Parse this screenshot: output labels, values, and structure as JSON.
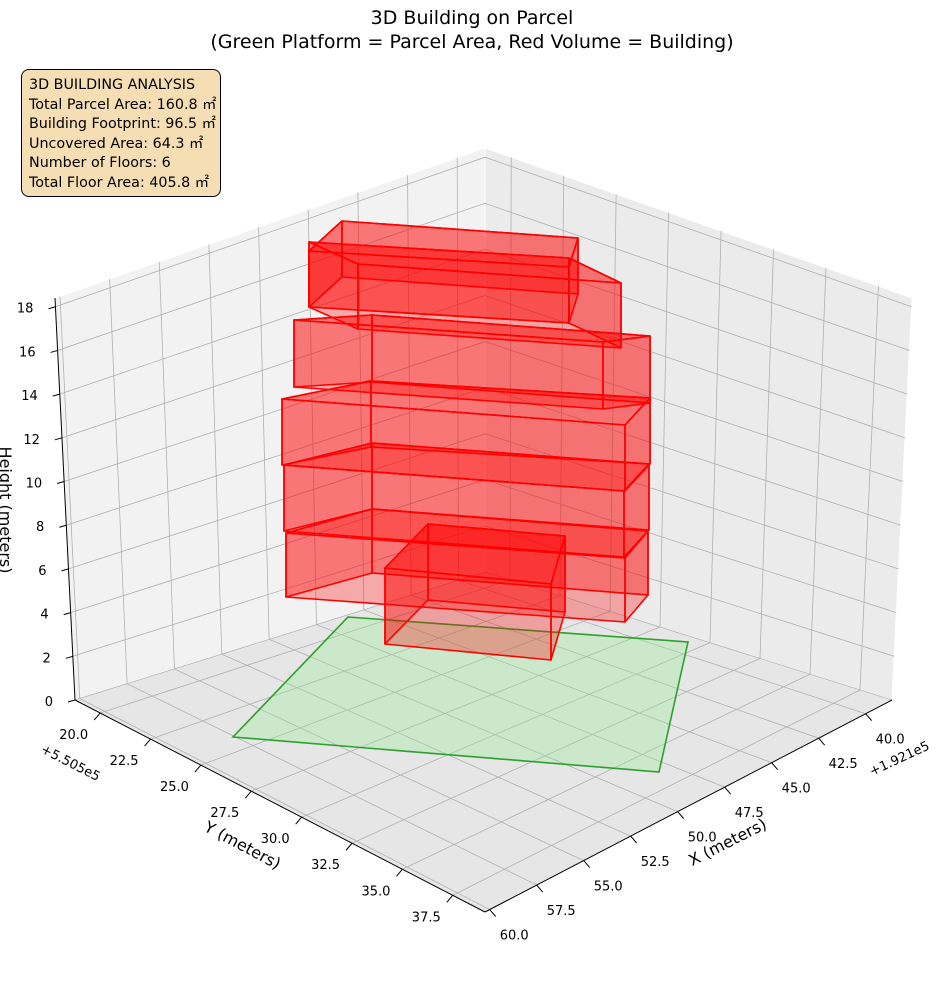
{
  "chart_data": {
    "type": "3d-box",
    "title_line1": "3D Building on Parcel",
    "title_line2": "(Green Platform = Parcel Area, Red Volume = Building)",
    "xlabel": "X (meters)",
    "ylabel": "Y (meters)",
    "zlabel": "Height (meters)",
    "x_offset": "+1.921e5",
    "y_offset": "+5.505e5",
    "x_ticks": [
      "40.0",
      "42.5",
      "45.0",
      "47.5",
      "50.0",
      "52.5",
      "55.0",
      "57.5",
      "60.0"
    ],
    "y_ticks": [
      "20.0",
      "22.5",
      "25.0",
      "27.5",
      "30.0",
      "32.5",
      "35.0",
      "37.5"
    ],
    "z_ticks": [
      "0",
      "2",
      "4",
      "6",
      "8",
      "10",
      "12",
      "14",
      "16",
      "18"
    ],
    "grid": true,
    "parcel_color": "#90ee90",
    "parcel_edge_color": "#2ca02c",
    "building_color": "#ff0000",
    "info_box_color": "#f5deb3",
    "floors": [
      {
        "floor": 1,
        "z_bottom": 0,
        "z_top": 3
      },
      {
        "floor": 2,
        "z_bottom": 3,
        "z_top": 6
      },
      {
        "floor": 3,
        "z_bottom": 6,
        "z_top": 9
      },
      {
        "floor": 4,
        "z_bottom": 9,
        "z_top": 12
      },
      {
        "floor": 5,
        "z_bottom": 12,
        "z_top": 15
      },
      {
        "floor": 6,
        "z_bottom": 15,
        "z_top": 18
      }
    ]
  },
  "info_box": {
    "title": "3D BUILDING ANALYSIS",
    "parcel_area": "Total Parcel Area: 160.8 ㎡",
    "footprint": "Building Footprint: 96.5 ㎡",
    "uncovered": "Uncovered Area: 64.3 ㎡",
    "floors": "Number of Floors: 6",
    "floor_area": "Total Floor Area: 405.8 ㎡"
  }
}
